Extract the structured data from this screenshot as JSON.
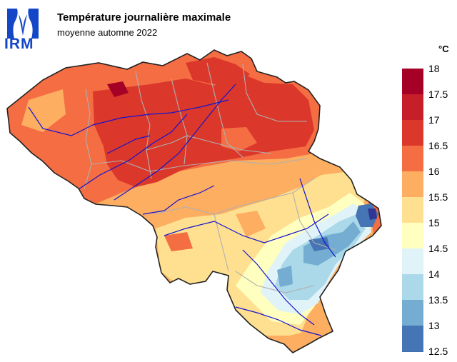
{
  "logo": {
    "text": "IRM"
  },
  "title": "Température journalière maximale",
  "subtitle": "moyenne automne 2022",
  "legend": {
    "unit": "°C",
    "levels": [
      {
        "label": "18",
        "color": "#a50026"
      },
      {
        "label": "17.5",
        "color": "#c71f2a"
      },
      {
        "label": "17",
        "color": "#db382b"
      },
      {
        "label": "16.5",
        "color": "#f46d43"
      },
      {
        "label": "16",
        "color": "#fdae61"
      },
      {
        "label": "15.5",
        "color": "#fee090"
      },
      {
        "label": "15",
        "color": "#ffffbf"
      },
      {
        "label": "14.5",
        "color": "#e0f3f8"
      },
      {
        "label": "14",
        "color": "#abd9e9"
      },
      {
        "label": "13.5",
        "color": "#74add1"
      },
      {
        "label": "13",
        "color": "#4575b4"
      },
      {
        "label": "12.5",
        "color": "#313695"
      }
    ]
  }
}
